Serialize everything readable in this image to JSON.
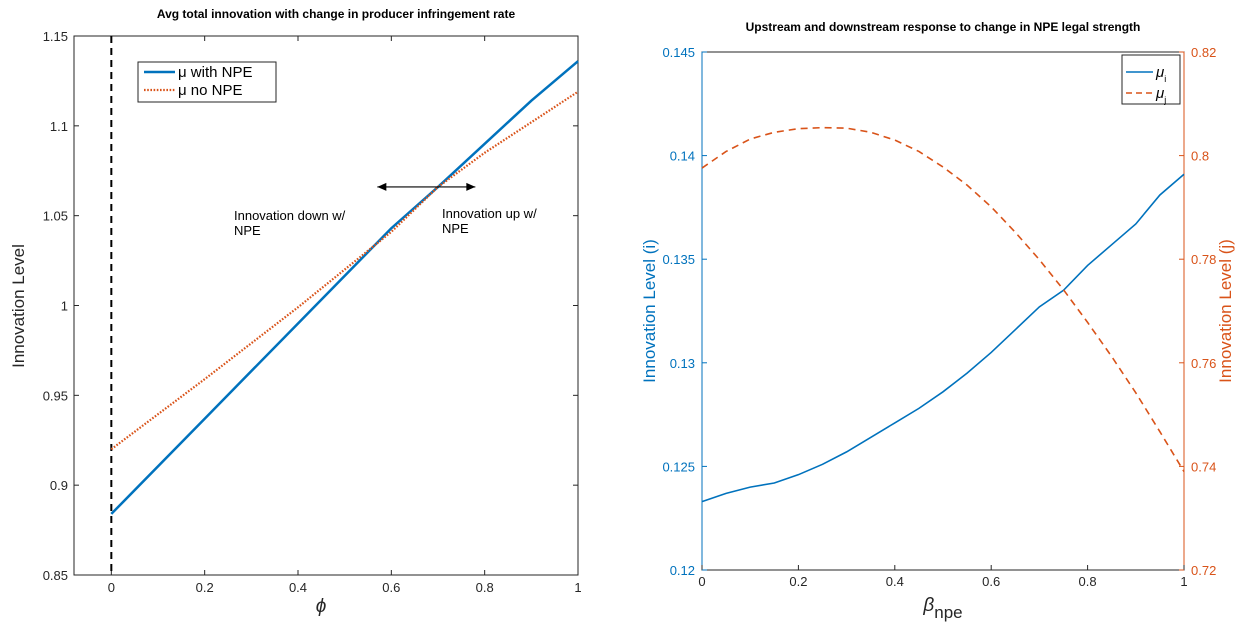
{
  "chart_data": [
    {
      "type": "line",
      "title": "Avg total innovation with change in producer infringement rate",
      "xlabel": "ϕ",
      "ylabel": "Innovation Level",
      "xlim": [
        -0.08,
        1
      ],
      "ylim": [
        0.85,
        1.15
      ],
      "xticks": [
        "0",
        "0.2",
        "0.4",
        "0.6",
        "0.8",
        "1"
      ],
      "xtick_values": [
        0,
        0.2,
        0.4,
        0.6,
        0.8,
        1
      ],
      "yticks": [
        "0.85",
        "0.9",
        "0.95",
        "1",
        "1.05",
        "1.1",
        "1.15"
      ],
      "ytick_values": [
        0.85,
        0.9,
        0.95,
        1,
        1.05,
        1.1,
        1.15
      ],
      "legend_position": "top-left",
      "grid": false,
      "vertical_line_x": 0,
      "series": [
        {
          "name": "μ with NPE",
          "color": "#0072BD",
          "style": "solid",
          "x": [
            0,
            0.2,
            0.4,
            0.6,
            0.7,
            0.8,
            0.9,
            1
          ],
          "y": [
            0.884,
            0.937,
            0.99,
            1.043,
            1.066,
            1.09,
            1.114,
            1.136
          ]
        },
        {
          "name": "μ no NPE",
          "color": "#D95319",
          "style": "dotted",
          "x": [
            0,
            0.2,
            0.4,
            0.6,
            0.7,
            0.8,
            0.9,
            1
          ],
          "y": [
            0.92,
            0.959,
            0.999,
            1.041,
            1.066,
            1.085,
            1.102,
            1.119
          ]
        }
      ],
      "annotations": {
        "left_line1": "Innovation down w/",
        "left_line2": "NPE",
        "right_line1": "Innovation up w/",
        "right_line2": "NPE"
      },
      "arrow": {
        "x_from": 0.57,
        "x_to": 0.78,
        "y": 1.066
      }
    },
    {
      "type": "line",
      "title": "Upstream and downstream response to change in NPE legal strength",
      "xlabel": "β",
      "xlabel_sub": "npe",
      "ylabel_left": "Innovation Level (i)",
      "ylabel_right": "Innovation Level (j)",
      "xlim": [
        0,
        1
      ],
      "ylim_left": [
        0.12,
        0.145
      ],
      "ylim_right": [
        0.72,
        0.82
      ],
      "xticks": [
        "0",
        "0.2",
        "0.4",
        "0.6",
        "0.8",
        "1"
      ],
      "xtick_values": [
        0,
        0.2,
        0.4,
        0.6,
        0.8,
        1
      ],
      "yticks_left": [
        "0.12",
        "0.125",
        "0.13",
        "0.135",
        "0.14",
        "0.145"
      ],
      "ytick_values_left": [
        0.12,
        0.125,
        0.13,
        0.135,
        0.14,
        0.145
      ],
      "yticks_right": [
        "0.72",
        "0.74",
        "0.76",
        "0.78",
        "0.8",
        "0.82"
      ],
      "ytick_values_right": [
        0.72,
        0.74,
        0.76,
        0.78,
        0.8,
        0.82
      ],
      "legend_position": "top-right",
      "grid": false,
      "series": [
        {
          "name": "μ",
          "sub": "i",
          "axis": "left",
          "color": "#0072BD",
          "style": "solid",
          "x": [
            0,
            0.05,
            0.1,
            0.15,
            0.2,
            0.25,
            0.3,
            0.35,
            0.4,
            0.45,
            0.5,
            0.55,
            0.6,
            0.65,
            0.7,
            0.75,
            0.8,
            0.85,
            0.9,
            0.95,
            1
          ],
          "y": [
            0.1233,
            0.1237,
            0.124,
            0.1242,
            0.1246,
            0.1251,
            0.1257,
            0.1264,
            0.1271,
            0.1278,
            0.1286,
            0.1295,
            0.1305,
            0.1316,
            0.1327,
            0.1335,
            0.1347,
            0.1357,
            0.1367,
            0.1381,
            0.1391
          ]
        },
        {
          "name": "μ",
          "sub": "j",
          "axis": "right",
          "color": "#D95319",
          "style": "dashed",
          "x": [
            0,
            0.05,
            0.1,
            0.15,
            0.2,
            0.25,
            0.3,
            0.35,
            0.4,
            0.45,
            0.5,
            0.55,
            0.6,
            0.65,
            0.7,
            0.75,
            0.8,
            0.85,
            0.9,
            0.95,
            1
          ],
          "y": [
            0.7976,
            0.8008,
            0.8032,
            0.8045,
            0.8052,
            0.8054,
            0.8053,
            0.8045,
            0.803,
            0.8008,
            0.7978,
            0.7943,
            0.7901,
            0.7852,
            0.7799,
            0.7741,
            0.7678,
            0.7612,
            0.7542,
            0.7467,
            0.739
          ]
        }
      ]
    }
  ]
}
